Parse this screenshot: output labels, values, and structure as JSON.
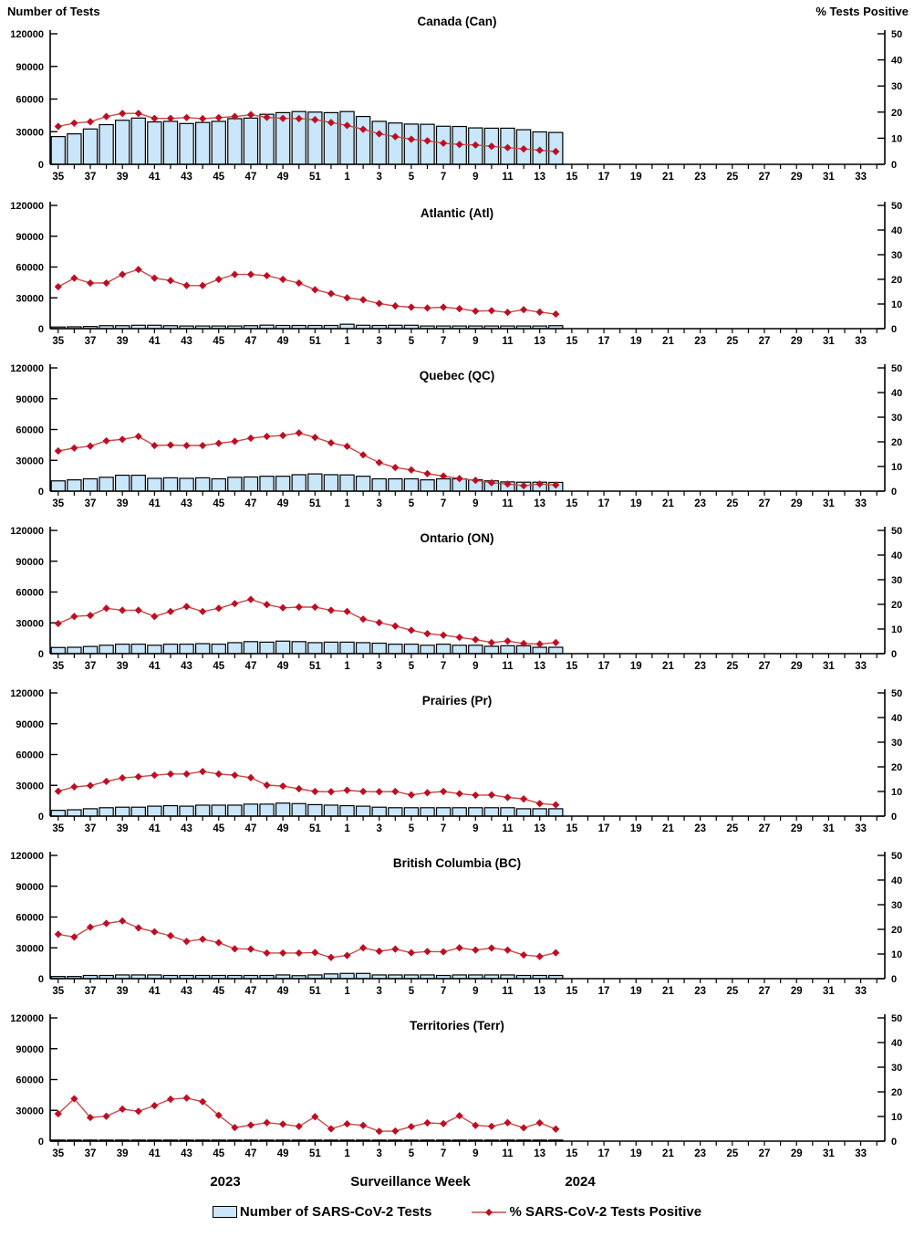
{
  "page": {
    "left_axis_title": "Number of Tests",
    "right_axis_title": "% Tests Positive",
    "footer": {
      "year_left": "2023",
      "x_axis_title": "Surveillance Week",
      "year_right": "2024"
    },
    "legend": {
      "bars_label": "Number of SARS-CoV-2 Tests",
      "line_label": "% SARS-CoV-2 Tests Positive"
    },
    "colors": {
      "bar_fill": "#C9E6FA",
      "bar_stroke": "#000000",
      "line_stroke": "#C64A4A",
      "marker_fill": "#BE0E20",
      "axis_color": "#000000"
    }
  },
  "chart_data": {
    "type": "bar",
    "subtype": "combo bar+line, 7 stacked panels sharing axes",
    "x_axis": {
      "title": "Surveillance Week",
      "total_slots": 52,
      "slot_weeks_note": "weeks 35-52 of 2023 then weeks 1-34 of 2024; data plotted for weeks 35-52 and 1-14",
      "tick_labels": [
        "35",
        "37",
        "39",
        "41",
        "43",
        "45",
        "47",
        "49",
        "51",
        "1",
        "3",
        "5",
        "7",
        "9",
        "11",
        "13",
        "15",
        "17",
        "19",
        "21",
        "23",
        "25",
        "27",
        "29",
        "31",
        "33"
      ]
    },
    "left_axis": {
      "label": "Number of Tests",
      "ylim": [
        0,
        120000
      ],
      "ticks": [
        0,
        30000,
        60000,
        90000,
        120000
      ]
    },
    "right_axis": {
      "label": "% Tests Positive",
      "ylim": [
        0,
        50
      ],
      "ticks": [
        0,
        10,
        20,
        30,
        40,
        50
      ]
    },
    "weeks": [
      35,
      36,
      37,
      38,
      39,
      40,
      41,
      42,
      43,
      44,
      45,
      46,
      47,
      48,
      49,
      50,
      51,
      52,
      1,
      2,
      3,
      4,
      5,
      6,
      7,
      8,
      9,
      10,
      11,
      12,
      13,
      14
    ],
    "series_names": {
      "bars": "Number of SARS-CoV-2 Tests",
      "line": "% SARS-CoV-2 Tests Positive"
    },
    "panels": [
      {
        "title": "Canada (Can)",
        "bar_values": [
          25500,
          28000,
          32500,
          36500,
          40500,
          42500,
          39000,
          39500,
          37500,
          38500,
          39500,
          42000,
          42500,
          46000,
          47500,
          48500,
          48000,
          47500,
          48500,
          44000,
          39500,
          38000,
          37000,
          36800,
          35000,
          34800,
          33500,
          33200,
          33200,
          31800,
          29800,
          29300
        ],
        "line_values": [
          14.5,
          15.8,
          16.3,
          18.3,
          19.5,
          19.5,
          17.6,
          17.6,
          17.9,
          17.5,
          17.9,
          18.3,
          19.0,
          18.0,
          17.6,
          17.5,
          17.1,
          16.0,
          14.9,
          13.4,
          11.7,
          10.6,
          9.6,
          9.0,
          8.1,
          7.6,
          7.4,
          6.9,
          6.4,
          5.9,
          5.4,
          4.9
        ]
      },
      {
        "title": "Atlantic (Atl)",
        "bar_values": [
          1600,
          1800,
          2100,
          2900,
          2900,
          3300,
          3300,
          2900,
          2600,
          2600,
          2600,
          2600,
          2900,
          3400,
          3100,
          3100,
          3100,
          3100,
          4300,
          3300,
          3100,
          3300,
          3300,
          2600,
          2600,
          2600,
          2600,
          2600,
          2600,
          2600,
          2600,
          2900
        ],
        "line_values": [
          17.0,
          20.5,
          18.5,
          18.5,
          22.0,
          24.0,
          20.5,
          19.5,
          17.5,
          17.5,
          20.0,
          22.0,
          22.0,
          21.5,
          20.0,
          18.5,
          15.8,
          14.2,
          12.5,
          11.7,
          10.2,
          9.2,
          8.7,
          8.4,
          8.7,
          8.1,
          7.1,
          7.3,
          6.6,
          7.7,
          6.7,
          5.9
        ]
      },
      {
        "title": "Quebec (QC)",
        "bar_values": [
          10000,
          11000,
          12000,
          13500,
          15500,
          15500,
          12500,
          13000,
          12500,
          13000,
          12000,
          13500,
          13800,
          14500,
          14500,
          16000,
          16800,
          16000,
          15800,
          14500,
          12000,
          12000,
          12000,
          11000,
          12000,
          12000,
          11000,
          10000,
          9000,
          8700,
          8700,
          8500
        ],
        "line_values": [
          16.3,
          17.5,
          18.3,
          20.4,
          21.0,
          22.2,
          18.5,
          18.7,
          18.5,
          18.5,
          19.4,
          20.2,
          21.5,
          22.2,
          22.6,
          23.6,
          21.8,
          19.6,
          18.2,
          14.7,
          11.6,
          9.6,
          8.6,
          7.1,
          6.1,
          5.1,
          4.4,
          3.4,
          2.9,
          2.2,
          2.9,
          2.5
        ]
      },
      {
        "title": "Ontario (ON)",
        "bar_values": [
          6000,
          6200,
          7000,
          8200,
          9200,
          9200,
          8200,
          9200,
          9200,
          9700,
          9200,
          10700,
          11700,
          11200,
          12200,
          11700,
          10700,
          11200,
          11200,
          10700,
          10200,
          9200,
          9200,
          8200,
          9200,
          8200,
          8200,
          7200,
          7700,
          7700,
          6200,
          6200
        ],
        "line_values": [
          12.2,
          15.1,
          15.5,
          18.4,
          17.6,
          17.6,
          15.1,
          17.1,
          19.1,
          17.1,
          18.4,
          20.3,
          22.0,
          19.9,
          18.6,
          18.9,
          18.9,
          17.6,
          17.1,
          14.0,
          12.6,
          11.2,
          9.5,
          8.1,
          7.5,
          6.6,
          5.7,
          4.5,
          5.1,
          4.1,
          3.9,
          4.5
        ]
      },
      {
        "title": "Prairies (Pr)",
        "bar_values": [
          5700,
          6200,
          7200,
          8200,
          8700,
          8700,
          9700,
          10200,
          9700,
          10700,
          10700,
          10700,
          11700,
          11700,
          12700,
          12200,
          11200,
          10700,
          10200,
          9700,
          8700,
          8200,
          8200,
          8200,
          8200,
          8200,
          8200,
          8200,
          8200,
          7200,
          7200,
          7200
        ],
        "line_values": [
          10.1,
          11.9,
          12.4,
          14.1,
          15.5,
          16.0,
          16.6,
          17.1,
          17.1,
          18.1,
          17.1,
          16.6,
          15.6,
          12.6,
          12.2,
          11.1,
          10.0,
          9.9,
          10.5,
          10.0,
          9.9,
          10.0,
          8.6,
          9.5,
          10.0,
          9.1,
          8.5,
          8.6,
          7.6,
          7.0,
          5.1,
          4.6
        ]
      },
      {
        "title": "British Columbia (BC)",
        "bar_values": [
          2100,
          2100,
          3100,
          3100,
          3600,
          3600,
          3600,
          3100,
          3100,
          3100,
          3100,
          3100,
          3100,
          3100,
          3600,
          2900,
          3600,
          4600,
          5100,
          5100,
          3600,
          3600,
          3600,
          3600,
          3100,
          3600,
          3600,
          3600,
          3600,
          3100,
          3100,
          3100
        ],
        "line_values": [
          18.0,
          16.9,
          20.9,
          22.4,
          23.4,
          20.6,
          19.0,
          17.4,
          15.1,
          16.0,
          14.6,
          12.1,
          12.0,
          10.4,
          10.4,
          10.4,
          10.6,
          8.6,
          9.4,
          12.5,
          11.1,
          12.0,
          10.5,
          11.0,
          10.9,
          12.5,
          11.6,
          12.4,
          11.6,
          9.6,
          9.0,
          10.5
        ]
      },
      {
        "title": "Territories (Terr)",
        "bar_values": [
          200,
          200,
          200,
          200,
          200,
          200,
          200,
          200,
          200,
          200,
          200,
          200,
          200,
          200,
          200,
          200,
          200,
          200,
          200,
          200,
          200,
          200,
          200,
          200,
          200,
          200,
          200,
          200,
          200,
          200,
          200,
          200
        ],
        "line_values": [
          11.1,
          17.2,
          9.6,
          10.1,
          13.0,
          12.1,
          14.4,
          17.0,
          17.5,
          16.0,
          10.5,
          5.5,
          6.5,
          7.5,
          6.9,
          6.0,
          9.9,
          5.0,
          7.0,
          6.4,
          4.0,
          4.1,
          5.9,
          7.4,
          7.1,
          10.3,
          6.4,
          6.0,
          7.5,
          5.4,
          7.4,
          4.9
        ]
      }
    ]
  }
}
